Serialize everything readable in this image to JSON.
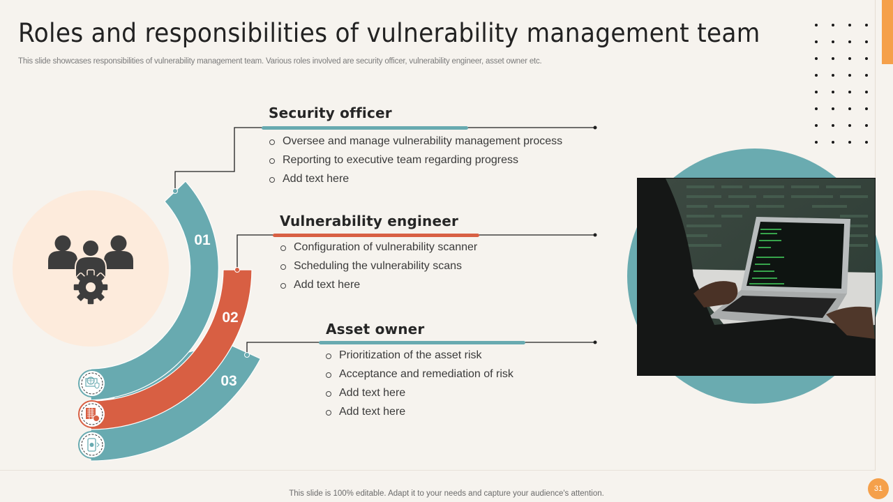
{
  "header": {
    "title": "Roles and responsibilities of vulnerability management team",
    "subtitle": "This slide showcases responsibilities of vulnerability management team. Various roles involved are security officer, vulnerability engineer, asset owner etc."
  },
  "hub": {
    "icon": "team-gear-icon"
  },
  "arcs": [
    {
      "number": "01",
      "color": "#68aab0",
      "icon": "globe-monitor-shield-icon"
    },
    {
      "number": "02",
      "color": "#d85f43",
      "icon": "building-lock-icon"
    },
    {
      "number": "03",
      "color": "#68aab0",
      "icon": "mobile-shield-icon"
    }
  ],
  "roles": [
    {
      "title": "Security officer",
      "accent": "#68aab0",
      "items": [
        "Oversee and manage vulnerability  management  process",
        "Reporting to executive  team regarding progress",
        "Add text here"
      ]
    },
    {
      "title": "Vulnerability engineer",
      "accent": "#d85f43",
      "items": [
        "Configuration of vulnerability  scanner",
        "Scheduling the vulnerability  scans",
        "Add text here"
      ]
    },
    {
      "title": "Asset owner",
      "accent": "#68aab0",
      "items": [
        "Prioritization of the asset risk",
        "Acceptance and remediation of risk",
        "Add text here",
        "Add text here"
      ]
    }
  ],
  "image": {
    "description": "person-typing-on-laptop-code-photo"
  },
  "footer": {
    "text": "This slide is 100% editable. Adapt it to your needs and capture your audience's attention.",
    "page_number": "31"
  },
  "colors": {
    "background": "#f6f3ee",
    "teal": "#68aab0",
    "red": "#d85f43",
    "orange": "#f5a04a",
    "hub_fill": "#fdebdc",
    "icon_dark": "#3d3d3d"
  }
}
